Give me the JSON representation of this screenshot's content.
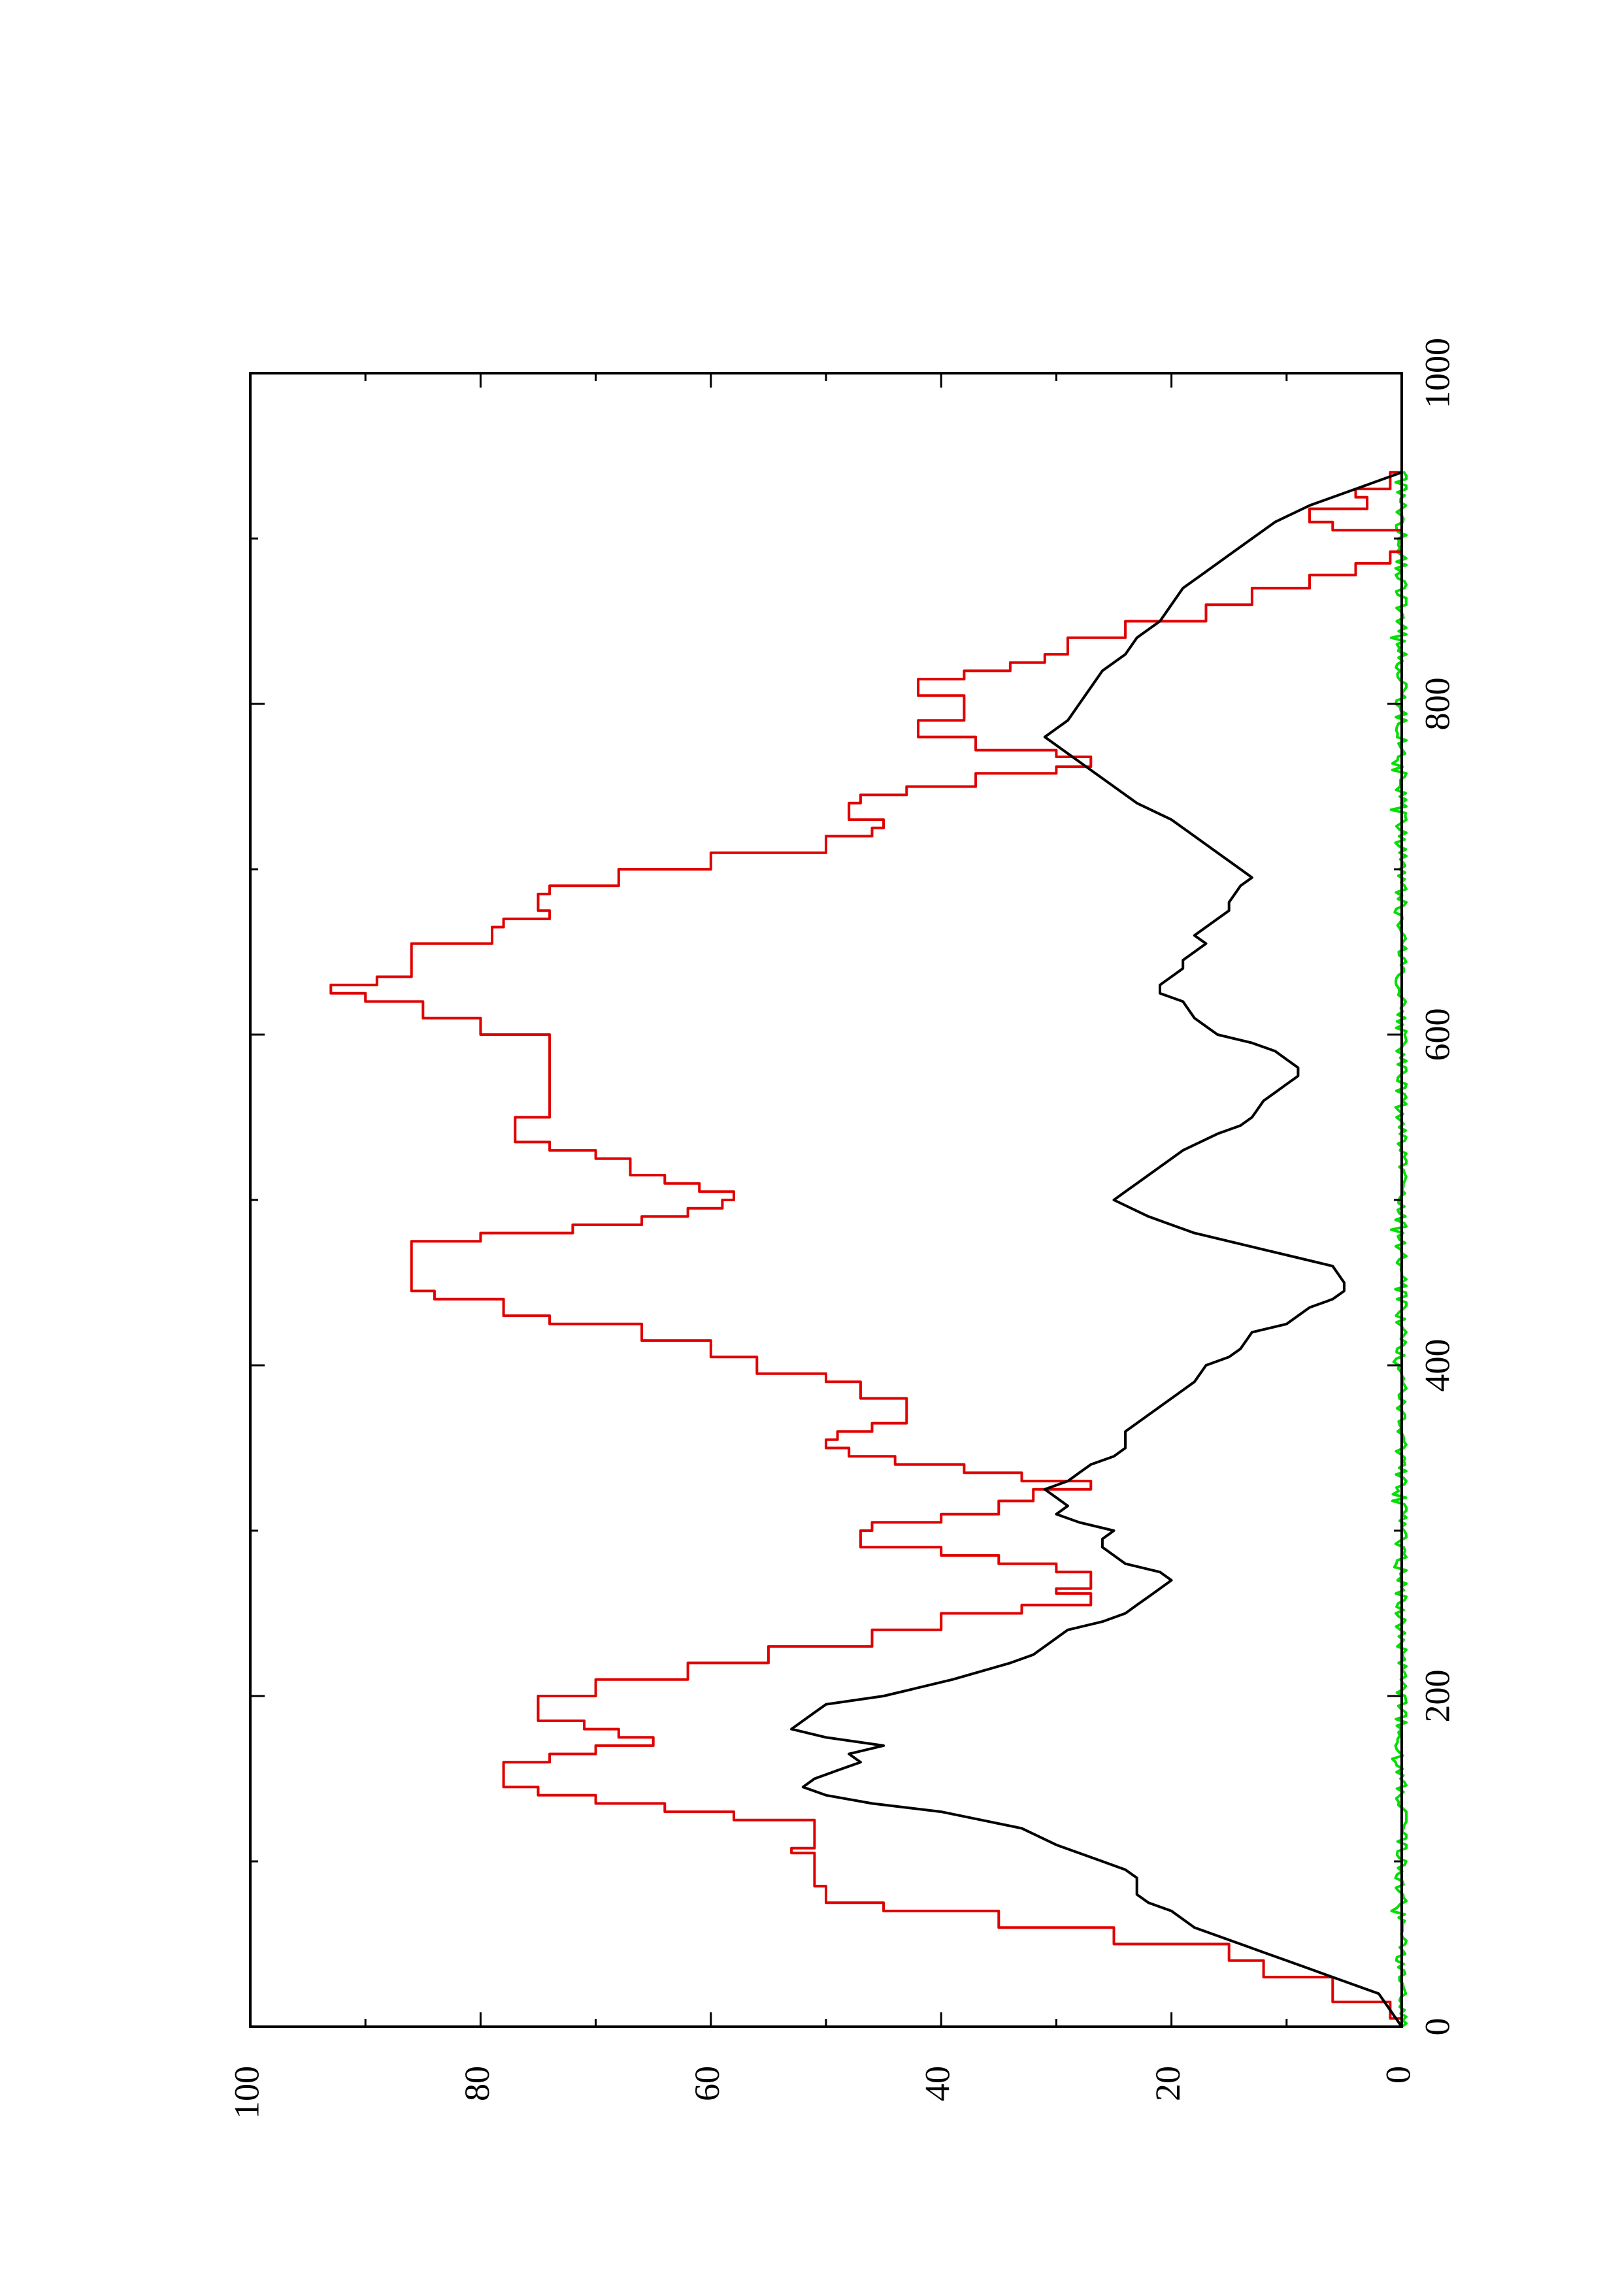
{
  "chart_data": {
    "type": "line",
    "orientation": "rotated-90-counterclockwise",
    "title": "",
    "xlabel": "",
    "ylabel": "",
    "xlim": [
      0,
      1000
    ],
    "ylim": [
      0,
      100
    ],
    "x_ticks": [
      "0",
      "200",
      "400",
      "600",
      "800",
      "1000"
    ],
    "y_ticks": [
      "0",
      "20",
      "40",
      "60",
      "80",
      "100"
    ],
    "x_minor_step": 100,
    "y_minor_step": 10,
    "grid": false,
    "legend": "none",
    "series": [
      {
        "color": "#e00000",
        "style": "step",
        "points": [
          [
            0,
            0
          ],
          [
            5,
            1
          ],
          [
            10,
            1
          ],
          [
            15,
            6
          ],
          [
            25,
            6
          ],
          [
            30,
            12
          ],
          [
            40,
            15
          ],
          [
            50,
            25
          ],
          [
            60,
            35
          ],
          [
            70,
            45
          ],
          [
            75,
            50
          ],
          [
            85,
            51
          ],
          [
            100,
            51
          ],
          [
            105,
            53
          ],
          [
            108,
            51
          ],
          [
            115,
            51
          ],
          [
            125,
            58
          ],
          [
            130,
            64
          ],
          [
            135,
            70
          ],
          [
            140,
            75
          ],
          [
            145,
            78
          ],
          [
            155,
            78
          ],
          [
            160,
            74
          ],
          [
            165,
            70
          ],
          [
            170,
            65
          ],
          [
            175,
            68
          ],
          [
            180,
            71
          ],
          [
            185,
            75
          ],
          [
            195,
            75
          ],
          [
            200,
            70
          ],
          [
            210,
            62
          ],
          [
            220,
            55
          ],
          [
            230,
            46
          ],
          [
            240,
            40
          ],
          [
            250,
            33
          ],
          [
            255,
            27
          ],
          [
            260,
            27
          ],
          [
            262,
            30
          ],
          [
            265,
            27
          ],
          [
            270,
            27
          ],
          [
            275,
            30
          ],
          [
            280,
            35
          ],
          [
            285,
            40
          ],
          [
            290,
            47
          ],
          [
            300,
            46
          ],
          [
            305,
            40
          ],
          [
            310,
            35
          ],
          [
            318,
            32
          ],
          [
            325,
            27
          ],
          [
            330,
            33
          ],
          [
            335,
            38
          ],
          [
            340,
            44
          ],
          [
            345,
            48
          ],
          [
            350,
            50
          ],
          [
            355,
            49
          ],
          [
            360,
            46
          ],
          [
            365,
            43
          ],
          [
            375,
            43
          ],
          [
            380,
            47
          ],
          [
            390,
            50
          ],
          [
            395,
            56
          ],
          [
            405,
            60
          ],
          [
            415,
            66
          ],
          [
            425,
            74
          ],
          [
            430,
            78
          ],
          [
            440,
            84
          ],
          [
            445,
            86
          ],
          [
            470,
            86
          ],
          [
            475,
            80
          ],
          [
            480,
            72
          ],
          [
            485,
            66
          ],
          [
            490,
            62
          ],
          [
            495,
            59
          ],
          [
            500,
            58
          ],
          [
            505,
            61
          ],
          [
            510,
            64
          ],
          [
            515,
            67
          ],
          [
            520,
            67
          ],
          [
            525,
            70
          ],
          [
            530,
            74
          ],
          [
            535,
            77
          ],
          [
            545,
            77
          ],
          [
            550,
            74
          ],
          [
            595,
            74
          ],
          [
            600,
            80
          ],
          [
            610,
            85
          ],
          [
            620,
            90
          ],
          [
            625,
            93
          ],
          [
            630,
            89
          ],
          [
            635,
            86
          ],
          [
            650,
            86
          ],
          [
            655,
            79
          ],
          [
            665,
            78
          ],
          [
            670,
            74
          ],
          [
            675,
            75
          ],
          [
            685,
            74
          ],
          [
            690,
            68
          ],
          [
            700,
            60
          ],
          [
            710,
            50
          ],
          [
            720,
            46
          ],
          [
            725,
            45
          ],
          [
            730,
            48
          ],
          [
            740,
            47
          ],
          [
            745,
            43
          ],
          [
            750,
            37
          ],
          [
            758,
            30
          ],
          [
            762,
            27
          ],
          [
            768,
            30
          ],
          [
            772,
            37
          ],
          [
            780,
            42
          ],
          [
            785,
            42
          ],
          [
            790,
            38
          ],
          [
            795,
            38
          ],
          [
            800,
            38
          ],
          [
            805,
            42
          ],
          [
            810,
            42
          ],
          [
            815,
            38
          ],
          [
            820,
            34
          ],
          [
            825,
            31
          ],
          [
            830,
            29
          ],
          [
            840,
            24
          ],
          [
            850,
            17
          ],
          [
            860,
            13
          ],
          [
            870,
            8
          ],
          [
            878,
            4
          ],
          [
            885,
            1
          ],
          [
            892,
            0
          ],
          [
            900,
            0
          ],
          [
            905,
            6
          ],
          [
            910,
            8
          ],
          [
            918,
            3
          ],
          [
            925,
            4
          ],
          [
            930,
            1
          ],
          [
            940,
            0
          ]
        ]
      },
      {
        "color": "#000000",
        "style": "line",
        "points": [
          [
            0,
            0
          ],
          [
            10,
            1
          ],
          [
            20,
            2
          ],
          [
            30,
            6
          ],
          [
            35,
            8
          ],
          [
            40,
            10
          ],
          [
            45,
            12
          ],
          [
            50,
            14
          ],
          [
            60,
            18
          ],
          [
            70,
            20
          ],
          [
            75,
            22
          ],
          [
            80,
            23
          ],
          [
            90,
            23
          ],
          [
            95,
            24
          ],
          [
            100,
            26
          ],
          [
            110,
            30
          ],
          [
            120,
            33
          ],
          [
            130,
            40
          ],
          [
            135,
            46
          ],
          [
            140,
            50
          ],
          [
            145,
            52
          ],
          [
            150,
            51
          ],
          [
            155,
            49
          ],
          [
            160,
            47
          ],
          [
            165,
            48
          ],
          [
            170,
            45
          ],
          [
            175,
            50
          ],
          [
            180,
            53
          ],
          [
            185,
            52
          ],
          [
            190,
            51
          ],
          [
            195,
            50
          ],
          [
            200,
            45
          ],
          [
            210,
            39
          ],
          [
            220,
            34
          ],
          [
            225,
            32
          ],
          [
            230,
            31
          ],
          [
            240,
            29
          ],
          [
            245,
            26
          ],
          [
            250,
            24
          ],
          [
            255,
            23
          ],
          [
            260,
            22
          ],
          [
            265,
            21
          ],
          [
            270,
            20
          ],
          [
            275,
            21
          ],
          [
            280,
            24
          ],
          [
            285,
            25
          ],
          [
            290,
            26
          ],
          [
            295,
            26
          ],
          [
            300,
            25
          ],
          [
            305,
            28
          ],
          [
            310,
            30
          ],
          [
            315,
            29
          ],
          [
            320,
            30
          ],
          [
            325,
            31
          ],
          [
            330,
            29
          ],
          [
            335,
            28
          ],
          [
            340,
            27
          ],
          [
            345,
            25
          ],
          [
            350,
            24
          ],
          [
            360,
            24
          ],
          [
            370,
            22
          ],
          [
            380,
            20
          ],
          [
            390,
            18
          ],
          [
            400,
            17
          ],
          [
            405,
            15
          ],
          [
            410,
            14
          ],
          [
            420,
            13
          ],
          [
            425,
            10
          ],
          [
            430,
            9
          ],
          [
            435,
            8
          ],
          [
            440,
            6
          ],
          [
            445,
            5
          ],
          [
            450,
            5
          ],
          [
            460,
            6
          ],
          [
            465,
            9
          ],
          [
            470,
            12
          ],
          [
            480,
            18
          ],
          [
            490,
            22
          ],
          [
            500,
            25
          ],
          [
            505,
            24
          ],
          [
            510,
            23
          ],
          [
            520,
            21
          ],
          [
            530,
            19
          ],
          [
            540,
            16
          ],
          [
            545,
            14
          ],
          [
            550,
            13
          ],
          [
            560,
            12
          ],
          [
            565,
            11
          ],
          [
            570,
            10
          ],
          [
            575,
            9
          ],
          [
            580,
            9
          ],
          [
            585,
            10
          ],
          [
            590,
            11
          ],
          [
            595,
            13
          ],
          [
            600,
            16
          ],
          [
            610,
            18
          ],
          [
            620,
            19
          ],
          [
            625,
            21
          ],
          [
            630,
            21
          ],
          [
            640,
            19
          ],
          [
            645,
            19
          ],
          [
            650,
            18
          ],
          [
            655,
            17
          ],
          [
            660,
            18
          ],
          [
            665,
            17
          ],
          [
            670,
            16
          ],
          [
            675,
            15
          ],
          [
            680,
            15
          ],
          [
            690,
            14
          ],
          [
            695,
            13
          ],
          [
            700,
            14
          ],
          [
            710,
            16
          ],
          [
            720,
            18
          ],
          [
            730,
            20
          ],
          [
            740,
            23
          ],
          [
            750,
            25
          ],
          [
            760,
            27
          ],
          [
            770,
            29
          ],
          [
            775,
            30
          ],
          [
            780,
            31
          ],
          [
            785,
            30
          ],
          [
            790,
            29
          ],
          [
            800,
            28
          ],
          [
            810,
            27
          ],
          [
            820,
            26
          ],
          [
            830,
            24
          ],
          [
            840,
            23
          ],
          [
            850,
            21
          ],
          [
            860,
            20
          ],
          [
            870,
            19
          ],
          [
            880,
            17
          ],
          [
            890,
            15
          ],
          [
            900,
            13
          ],
          [
            910,
            11
          ],
          [
            920,
            8
          ],
          [
            930,
            4
          ],
          [
            940,
            0
          ]
        ]
      },
      {
        "color": "#00e000",
        "style": "noise",
        "baseline": 0,
        "amplitude": 0.55,
        "spike_amplitude": 1.4,
        "x_range": [
          0,
          940
        ],
        "x_step": 2
      }
    ]
  }
}
